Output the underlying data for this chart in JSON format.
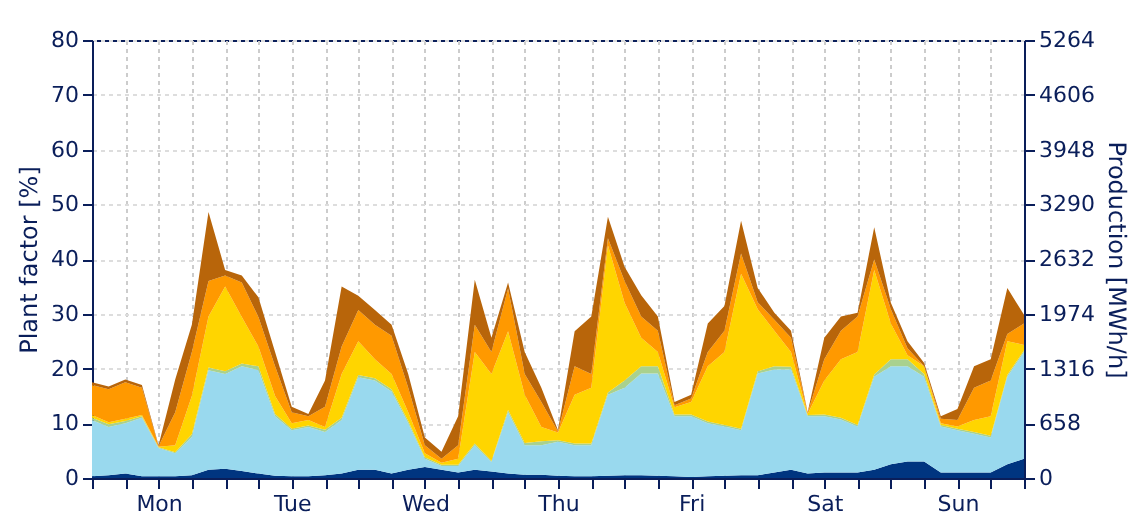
{
  "chart_data": {
    "type": "area",
    "stacked": true,
    "grid": true,
    "ylabel": "Plant factor [%]",
    "y2label": "Production [MWh/h]",
    "categories": [
      null,
      null,
      null,
      null,
      "Mon",
      null,
      null,
      null,
      null,
      null,
      null,
      null,
      "Tue",
      null,
      null,
      null,
      null,
      null,
      null,
      null,
      "Wed",
      null,
      null,
      null,
      null,
      null,
      null,
      null,
      "Thu",
      null,
      null,
      null,
      null,
      null,
      null,
      null,
      "Fri",
      null,
      null,
      null,
      null,
      null,
      null,
      null,
      "Sat",
      null,
      null,
      null,
      null,
      null,
      null,
      null,
      "Sun",
      null,
      null,
      null,
      null
    ],
    "ylim": [
      0,
      80
    ],
    "yticks": [
      0,
      10,
      20,
      30,
      40,
      50,
      60,
      70,
      80
    ],
    "y2lim": [
      0,
      5264
    ],
    "y2ticks": [
      0,
      658,
      1316,
      1974,
      2632,
      3290,
      3948,
      4606,
      5264
    ],
    "series": [
      {
        "color": "#003580",
        "values": [
          0.3,
          0.5,
          0.8,
          0.3,
          0.3,
          0.3,
          0.5,
          1.5,
          1.7,
          1.3,
          0.8,
          0.4,
          0.3,
          0.3,
          0.5,
          0.8,
          1.5,
          1.5,
          0.8,
          1.5,
          2.0,
          1.5,
          1.0,
          1.5,
          1.2,
          0.8,
          0.6,
          0.6,
          0.4,
          0.3,
          0.3,
          0.4,
          0.5,
          0.5,
          0.4,
          0.3,
          0.2,
          0.3,
          0.4,
          0.5,
          0.5,
          1.0,
          1.5,
          0.8,
          1.0,
          1.0,
          1.0,
          1.5,
          2.5,
          3.0,
          3.0,
          1.0,
          1.0,
          1.0,
          1.0,
          2.5,
          3.5
        ]
      },
      {
        "color": "#99d9ee",
        "values": [
          10.3,
          8.8,
          9.2,
          10.7,
          5.2,
          4.2,
          7.0,
          18.2,
          17.3,
          19.1,
          18.9,
          10.9,
          8.4,
          9.0,
          7.9,
          9.8,
          16.9,
          16.3,
          15.0,
          8.5,
          1.5,
          0.7,
          1.2,
          4.5,
          1.7,
          11.2,
          5.4,
          5.4,
          6.2,
          5.7,
          5.7,
          14.8,
          16.0,
          18.6,
          18.7,
          11.0,
          11.1,
          9.7,
          9.0,
          8.2,
          18.6,
          18.8,
          18.3,
          10.5,
          10.3,
          9.7,
          8.4,
          17.0,
          17.9,
          17.4,
          15.5,
          8.4,
          7.7,
          7.1,
          6.4,
          16.0,
          19.5
        ]
      },
      {
        "color": "#a9d18e",
        "values": [
          0.4,
          0.5,
          0.4,
          0.3,
          0.1,
          0.2,
          0.5,
          0.5,
          0.5,
          0.5,
          0.7,
          0.4,
          0.3,
          0.3,
          0.4,
          0.4,
          0.4,
          0.4,
          0.4,
          0.4,
          0.3,
          0.2,
          0.2,
          0.3,
          0.2,
          0.4,
          0.4,
          0.7,
          0.3,
          0.3,
          0.3,
          0.4,
          1.3,
          1.3,
          1.3,
          0.3,
          0.3,
          0.3,
          0.3,
          0.3,
          0.4,
          0.6,
          0.5,
          0.2,
          0.3,
          0.3,
          0.3,
          0.4,
          1.3,
          1.3,
          0.5,
          0.3,
          0.3,
          0.3,
          0.3,
          0.3,
          0.3
        ]
      },
      {
        "color": "#ffd500",
        "values": [
          0.5,
          0.4,
          0.4,
          0.2,
          0.1,
          1.3,
          7.0,
          9.3,
          15.5,
          8.5,
          3.6,
          3.3,
          1.0,
          1.0,
          0.5,
          8.0,
          6.2,
          3.5,
          2.8,
          1.6,
          0.7,
          0.4,
          1.1,
          16.7,
          15.9,
          14.4,
          8.8,
          2.6,
          1.4,
          8.9,
          10.2,
          26.9,
          14.2,
          5.2,
          2.6,
          1.3,
          2.3,
          10.1,
          13.3,
          28.3,
          11.3,
          6.5,
          2.7,
          0.2,
          6.2,
          10.7,
          13.3,
          19.1,
          6.5,
          0.7,
          1.4,
          0.3,
          0.4,
          2.2,
          3.6,
          6.2,
          1.0
        ]
      },
      {
        "color": "#ff9900",
        "values": [
          5.5,
          6.0,
          6.7,
          5.0,
          0.1,
          6.0,
          8.0,
          6.5,
          2.0,
          6.3,
          5.4,
          5.4,
          2.0,
          0.7,
          3.7,
          5.0,
          5.7,
          6.3,
          7.0,
          4.5,
          1.5,
          0.7,
          2.5,
          5.0,
          4.0,
          7.8,
          3.8,
          4.6,
          0.2,
          5.2,
          2.5,
          1.3,
          4.0,
          3.9,
          3.9,
          0.4,
          0.6,
          2.6,
          3.9,
          3.7,
          1.3,
          2.0,
          2.6,
          0.2,
          3.9,
          5.2,
          6.5,
          1.9,
          2.6,
          1.3,
          0.0,
          0.8,
          1.2,
          5.9,
          6.5,
          1.3,
          3.9
        ]
      },
      {
        "color": "#b8650a",
        "values": [
          0.5,
          0.5,
          0.5,
          0.5,
          0.2,
          6.0,
          5.0,
          12.6,
          1.0,
          1.3,
          3.6,
          2.6,
          1.0,
          0.4,
          4.8,
          11.0,
          2.6,
          2.7,
          2.0,
          2.5,
          1.4,
          1.3,
          5.3,
          8.2,
          2.6,
          1.1,
          4.0,
          2.6,
          0.2,
          6.4,
          10.5,
          3.9,
          2.6,
          3.9,
          2.6,
          0.6,
          0.7,
          5.2,
          4.5,
          6.0,
          2.6,
          1.3,
          1.3,
          0.1,
          3.9,
          2.6,
          0.7,
          5.9,
          1.2,
          1.3,
          0.6,
          0.5,
          2.0,
          3.9,
          3.9,
          8.4,
          1.6
        ]
      }
    ]
  }
}
